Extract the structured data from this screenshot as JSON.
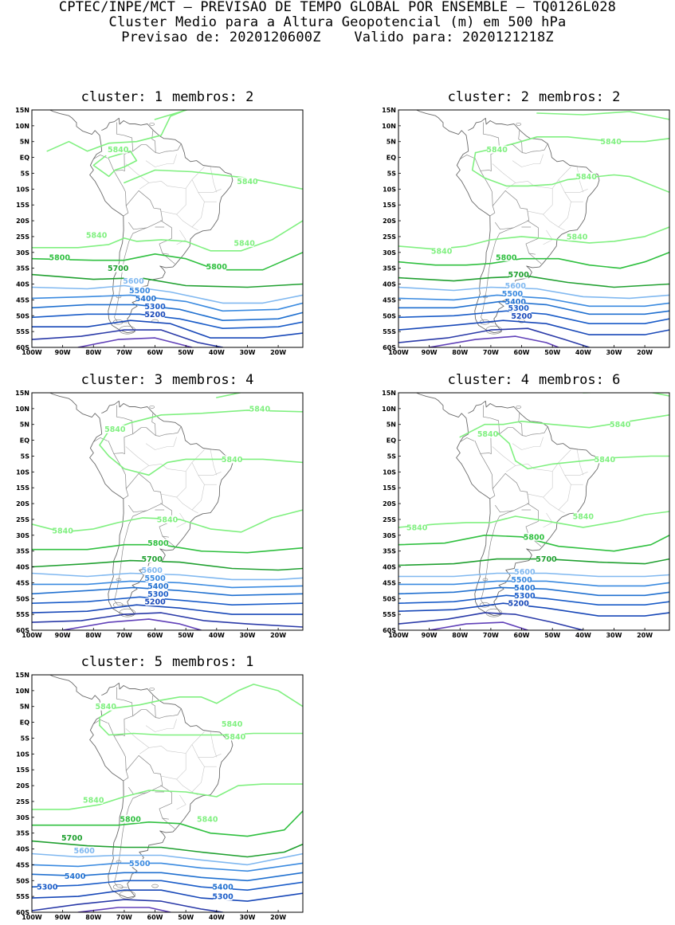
{
  "header": {
    "line1": "CPTEC/INPE/MCT – PREVISAO DE TEMPO GLOBAL POR ENSEMBLE – TQ0126L028",
    "line2": "Cluster Medio para a Altura Geopotencial (m) em 500 hPa",
    "line3_forecast": "Previsao de: 2020120600Z",
    "line3_valid": "Valido para: 2020121218Z"
  },
  "axes": {
    "lat_ticks": [
      "15N",
      "10N",
      "5N",
      "EQ",
      "5S",
      "10S",
      "15S",
      "20S",
      "25S",
      "30S",
      "35S",
      "40S",
      "45S",
      "50S",
      "55S",
      "60S"
    ],
    "lon_ticks": [
      "100W",
      "90W",
      "80W",
      "70W",
      "60W",
      "50W",
      "40W",
      "30W",
      "20W"
    ]
  },
  "panels": [
    {
      "cluster_label": "cluster: 1",
      "members_label": "membros: 2",
      "contours": [
        {
          "value": "5840",
          "labels": [
            "5840",
            "5840",
            "5840",
            "5840"
          ],
          "color": "#80f080"
        },
        {
          "value": "5800",
          "labels": [
            "5800",
            "5800"
          ],
          "color": "#30c040"
        },
        {
          "value": "5700",
          "labels": [
            "5700"
          ],
          "color": "#20a030"
        },
        {
          "value": "5600",
          "labels": [
            "5600"
          ],
          "color": "#80b8f0"
        },
        {
          "value": "5500",
          "labels": [
            "5500"
          ],
          "color": "#3a8ae0"
        },
        {
          "value": "5400",
          "labels": [
            "5400"
          ],
          "color": "#2070d0"
        },
        {
          "value": "5300",
          "labels": [
            "5300"
          ],
          "color": "#1a5cc8"
        },
        {
          "value": "5200",
          "labels": [
            "5200"
          ],
          "color": "#1848b8"
        }
      ]
    },
    {
      "cluster_label": "cluster: 2",
      "members_label": "membros: 2",
      "contours": [
        {
          "value": "5840",
          "labels": [
            "5840",
            "5840",
            "5840",
            "5840",
            "5840"
          ],
          "color": "#80f080"
        },
        {
          "value": "5800",
          "labels": [
            "5800"
          ],
          "color": "#30c040"
        },
        {
          "value": "5700",
          "labels": [
            "5700"
          ],
          "color": "#20a030"
        },
        {
          "value": "5600",
          "labels": [
            "5600"
          ],
          "color": "#80b8f0"
        },
        {
          "value": "5500",
          "labels": [
            "5500"
          ],
          "color": "#3a8ae0"
        },
        {
          "value": "5400",
          "labels": [
            "5400"
          ],
          "color": "#2070d0"
        },
        {
          "value": "5300",
          "labels": [
            "5300"
          ],
          "color": "#1a5cc8"
        },
        {
          "value": "5200",
          "labels": [
            "5200"
          ],
          "color": "#1848b8"
        }
      ]
    },
    {
      "cluster_label": "cluster: 3",
      "members_label": "membros: 4",
      "contours": [
        {
          "value": "5840",
          "labels": [
            "5840",
            "5840",
            "5840",
            "5840",
            "5840"
          ],
          "color": "#80f080"
        },
        {
          "value": "5800",
          "labels": [
            "5800"
          ],
          "color": "#30c040"
        },
        {
          "value": "5700",
          "labels": [
            "5700"
          ],
          "color": "#20a030"
        },
        {
          "value": "5600",
          "labels": [
            "5600"
          ],
          "color": "#80b8f0"
        },
        {
          "value": "5500",
          "labels": [
            "5500"
          ],
          "color": "#3a8ae0"
        },
        {
          "value": "5400",
          "labels": [
            "5400"
          ],
          "color": "#2070d0"
        },
        {
          "value": "5300",
          "labels": [
            "5300"
          ],
          "color": "#1a5cc8"
        },
        {
          "value": "5200",
          "labels": [
            "5200"
          ],
          "color": "#1848b8"
        }
      ]
    },
    {
      "cluster_label": "cluster: 4",
      "members_label": "membros: 6",
      "contours": [
        {
          "value": "5840",
          "labels": [
            "5840",
            "5840",
            "5840",
            "5840",
            "5840"
          ],
          "color": "#80f080"
        },
        {
          "value": "5800",
          "labels": [
            "5800"
          ],
          "color": "#30c040"
        },
        {
          "value": "5700",
          "labels": [
            "5700"
          ],
          "color": "#20a030"
        },
        {
          "value": "5600",
          "labels": [
            "5600"
          ],
          "color": "#80b8f0"
        },
        {
          "value": "5500",
          "labels": [
            "5500"
          ],
          "color": "#3a8ae0"
        },
        {
          "value": "5400",
          "labels": [
            "5400"
          ],
          "color": "#2070d0"
        },
        {
          "value": "5300",
          "labels": [
            "5300"
          ],
          "color": "#1a5cc8"
        },
        {
          "value": "5200",
          "labels": [
            "5200"
          ],
          "color": "#1848b8"
        }
      ]
    },
    {
      "cluster_label": "cluster: 5",
      "members_label": "membros: 1",
      "contours": [
        {
          "value": "5840",
          "labels": [
            "5840",
            "5840",
            "5840",
            "5840",
            "5840"
          ],
          "color": "#80f080"
        },
        {
          "value": "5800",
          "labels": [
            "5800"
          ],
          "color": "#30c040"
        },
        {
          "value": "5700",
          "labels": [
            "5700"
          ],
          "color": "#20a030"
        },
        {
          "value": "5600",
          "labels": [
            "5600"
          ],
          "color": "#80b8f0"
        },
        {
          "value": "5500",
          "labels": [
            "5500"
          ],
          "color": "#3a8ae0"
        },
        {
          "value": "5400",
          "labels": [
            "5400",
            "5400"
          ],
          "color": "#2070d0"
        },
        {
          "value": "5300",
          "labels": [
            "5300",
            "5300"
          ],
          "color": "#1a5cc8"
        }
      ]
    }
  ]
}
